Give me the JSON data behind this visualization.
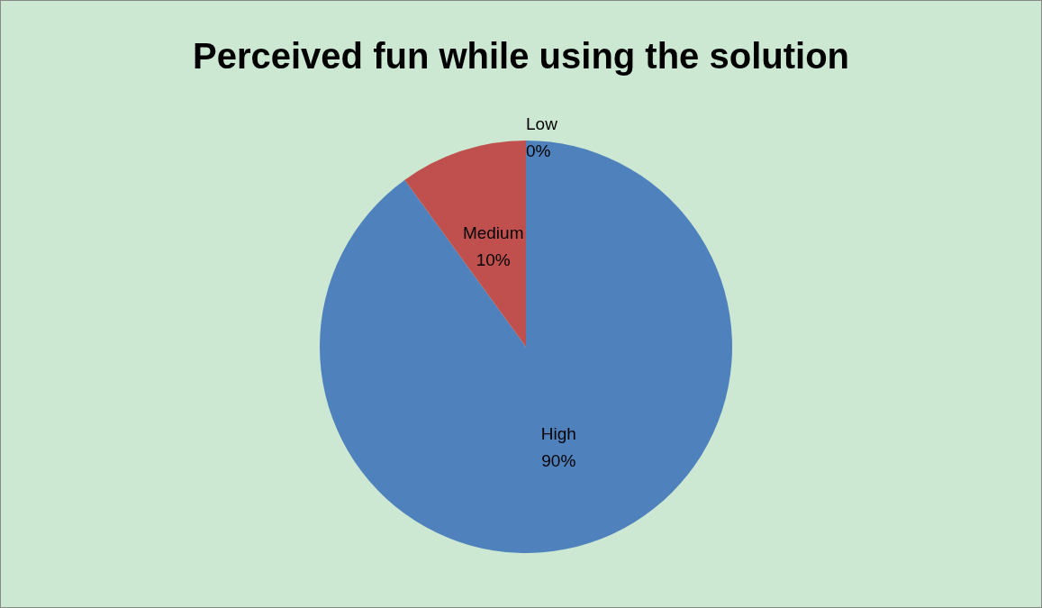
{
  "chart_data": {
    "type": "pie",
    "title": "Perceived fun while using the solution",
    "categories": [
      "High",
      "Medium",
      "Low"
    ],
    "values": [
      90,
      10,
      0
    ],
    "value_labels": [
      "90%",
      "10%",
      "0%"
    ],
    "colors": [
      "#4f81bd",
      "#c0504d",
      "#9bbb59"
    ]
  }
}
